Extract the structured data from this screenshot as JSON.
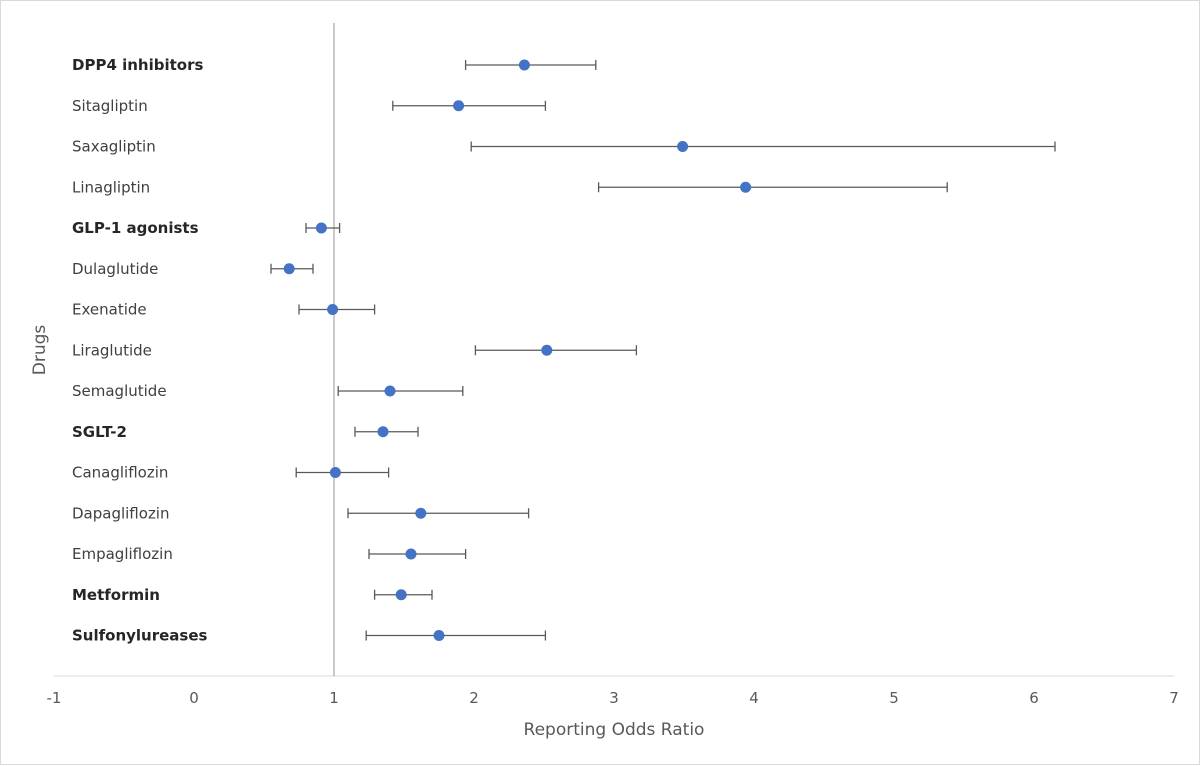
{
  "chart_data": {
    "type": "scatter",
    "title": "",
    "xlabel": "Reporting Odds Ratio",
    "ylabel": "Drugs",
    "xlim": [
      -1,
      7
    ],
    "xticks": [
      -1,
      0,
      1,
      2,
      3,
      4,
      5,
      6,
      7
    ],
    "reference_line_x": 1,
    "marker_color": "#4472c4",
    "errorbar_color": "#595959",
    "grid": false,
    "legend": "none",
    "categories": [
      {
        "label": "DPP4 inhibitors",
        "bold": true,
        "ror": 2.36,
        "lower": 1.94,
        "upper": 2.87
      },
      {
        "label": "Sitagliptin",
        "bold": false,
        "ror": 1.89,
        "lower": 1.42,
        "upper": 2.51
      },
      {
        "label": "Saxagliptin",
        "bold": false,
        "ror": 3.49,
        "lower": 1.98,
        "upper": 6.15
      },
      {
        "label": "Linagliptin",
        "bold": false,
        "ror": 3.94,
        "lower": 2.89,
        "upper": 5.38
      },
      {
        "label": "GLP-1 agonists",
        "bold": true,
        "ror": 0.91,
        "lower": 0.8,
        "upper": 1.04
      },
      {
        "label": "Dulaglutide",
        "bold": false,
        "ror": 0.68,
        "lower": 0.55,
        "upper": 0.85
      },
      {
        "label": "Exenatide",
        "bold": false,
        "ror": 0.99,
        "lower": 0.75,
        "upper": 1.29
      },
      {
        "label": "Liraglutide",
        "bold": false,
        "ror": 2.52,
        "lower": 2.01,
        "upper": 3.16
      },
      {
        "label": "Semaglutide",
        "bold": false,
        "ror": 1.4,
        "lower": 1.03,
        "upper": 1.92
      },
      {
        "label": "SGLT-2",
        "bold": true,
        "ror": 1.35,
        "lower": 1.15,
        "upper": 1.6
      },
      {
        "label": "Canagliflozin",
        "bold": false,
        "ror": 1.01,
        "lower": 0.73,
        "upper": 1.39
      },
      {
        "label": "Dapagliflozin",
        "bold": false,
        "ror": 1.62,
        "lower": 1.1,
        "upper": 2.39
      },
      {
        "label": "Empagliflozin",
        "bold": false,
        "ror": 1.55,
        "lower": 1.25,
        "upper": 1.94
      },
      {
        "label": "Metformin",
        "bold": true,
        "ror": 1.48,
        "lower": 1.29,
        "upper": 1.7
      },
      {
        "label": "Sulfonylureases",
        "bold": true,
        "ror": 1.75,
        "lower": 1.23,
        "upper": 2.51
      }
    ]
  }
}
